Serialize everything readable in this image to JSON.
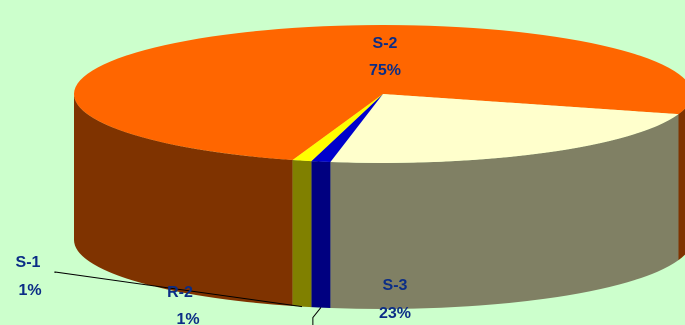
{
  "chart_data": {
    "type": "pie",
    "style": "3d",
    "title": "",
    "slices": [
      {
        "name": "S-2",
        "value": 75,
        "label": "75%",
        "color": "#ff6600",
        "side_color": "#7f3300"
      },
      {
        "name": "S-3",
        "value": 23,
        "label": "23%",
        "color": "#ffffcc",
        "side_color": "#808064"
      },
      {
        "name": "R-2",
        "value": 1,
        "label": "1%",
        "color": "#0000cc",
        "side_color": "#000080"
      },
      {
        "name": "S-1",
        "value": 1,
        "label": "1%",
        "color": "#ffff00",
        "side_color": "#808000"
      }
    ],
    "background": "#ccffcc",
    "label_color": "#0b2d86"
  }
}
